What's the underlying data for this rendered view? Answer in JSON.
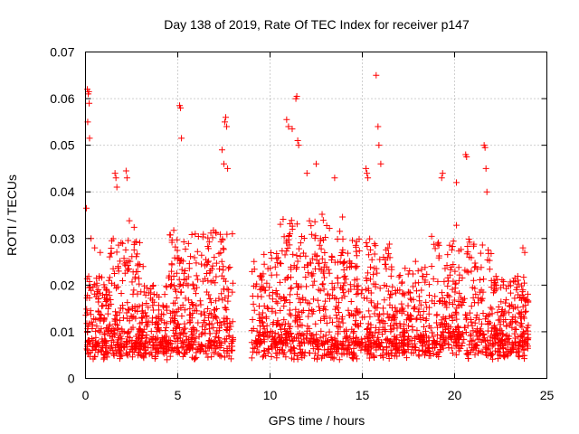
{
  "chart_data": {
    "type": "scatter",
    "title": "Day 138 of 2019, Rate Of TEC Index for receiver p147",
    "xlabel": "GPS time / hours",
    "ylabel": "ROTI / TECUs",
    "xlim": [
      0,
      25
    ],
    "ylim": [
      0,
      0.07
    ],
    "xticks": [
      0,
      5,
      10,
      15,
      20,
      25
    ],
    "xtick_labels": [
      "0",
      "5",
      "10",
      "15",
      "20",
      "25"
    ],
    "yticks": [
      0,
      0.01,
      0.02,
      0.03,
      0.04,
      0.05,
      0.06,
      0.07
    ],
    "ytick_labels": [
      "0",
      "0.01",
      "0.02",
      "0.03",
      "0.04",
      "0.05",
      "0.06",
      "0.07"
    ],
    "grid": true,
    "marker": "+",
    "color": "#ff0000",
    "data_gap_hours": [
      8.0,
      9.0
    ],
    "series": [
      {
        "name": "ROTI",
        "points": [
          [
            0.05,
            0.0365
          ],
          [
            0.1,
            0.062
          ],
          [
            0.12,
            0.055
          ],
          [
            0.15,
            0.061
          ],
          [
            0.18,
            0.0615
          ],
          [
            0.2,
            0.059
          ],
          [
            0.22,
            0.0515
          ],
          [
            0.3,
            0.03
          ],
          [
            0.5,
            0.028
          ],
          [
            0.8,
            0.027
          ],
          [
            1.6,
            0.044
          ],
          [
            1.65,
            0.043
          ],
          [
            1.7,
            0.041
          ],
          [
            2.2,
            0.0445
          ],
          [
            2.25,
            0.043
          ],
          [
            5.1,
            0.0585
          ],
          [
            5.15,
            0.058
          ],
          [
            5.2,
            0.0515
          ],
          [
            7.4,
            0.049
          ],
          [
            7.5,
            0.046
          ],
          [
            7.55,
            0.055
          ],
          [
            7.6,
            0.056
          ],
          [
            7.65,
            0.054
          ],
          [
            7.7,
            0.045
          ],
          [
            10.9,
            0.0555
          ],
          [
            11.0,
            0.054
          ],
          [
            11.2,
            0.0535
          ],
          [
            11.4,
            0.06
          ],
          [
            11.45,
            0.0605
          ],
          [
            11.5,
            0.051
          ],
          [
            11.55,
            0.05
          ],
          [
            12.5,
            0.046
          ],
          [
            12.0,
            0.044
          ],
          [
            13.5,
            0.043
          ],
          [
            15.2,
            0.045
          ],
          [
            15.25,
            0.044
          ],
          [
            15.3,
            0.043
          ],
          [
            15.75,
            0.065
          ],
          [
            15.85,
            0.054
          ],
          [
            15.9,
            0.05
          ],
          [
            16.0,
            0.046
          ],
          [
            19.3,
            0.043
          ],
          [
            19.35,
            0.044
          ],
          [
            20.1,
            0.042
          ],
          [
            20.6,
            0.048
          ],
          [
            20.65,
            0.0475
          ],
          [
            21.6,
            0.05
          ],
          [
            21.65,
            0.0495
          ],
          [
            21.7,
            0.045
          ],
          [
            21.75,
            0.04
          ],
          [
            23.7,
            0.028
          ],
          [
            23.8,
            0.027
          ]
        ]
      }
    ]
  }
}
